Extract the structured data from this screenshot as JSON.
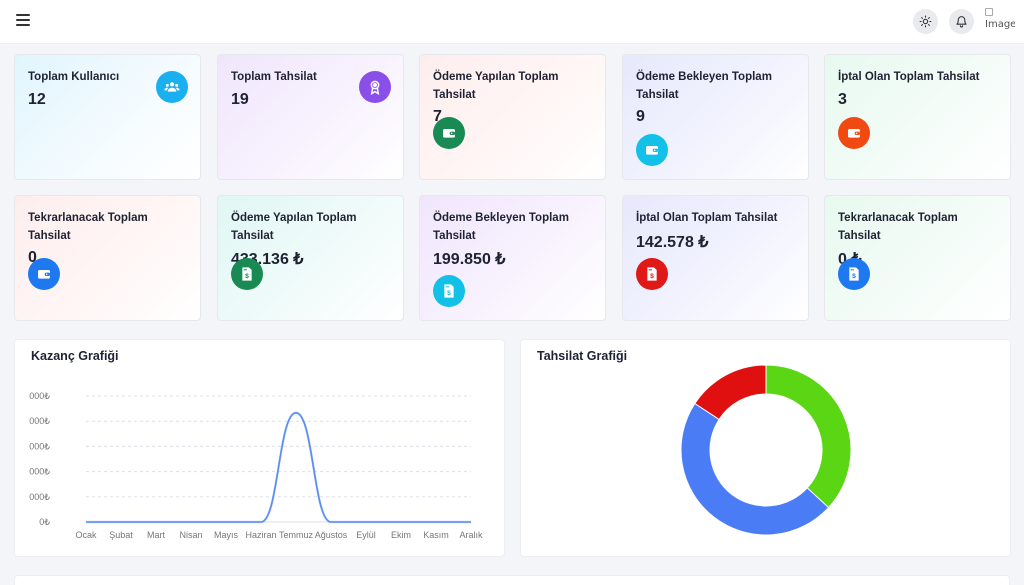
{
  "topbar": {
    "avatar_alt": "Image",
    "icons": {
      "menu": "hamburger-icon",
      "theme": "sun-icon",
      "notifications": "bell-icon"
    }
  },
  "cards": [
    {
      "title": "Toplam Kullanıcı",
      "value": "12",
      "icon": "users-icon",
      "color": "#1ab0f0"
    },
    {
      "title": "Toplam Tahsilat",
      "value": "19",
      "icon": "award-icon",
      "color": "#8a4fe8"
    },
    {
      "title": "Ödeme Yapılan Toplam Tahsilat",
      "value": "7",
      "icon": "wallet-icon",
      "color": "#1a8a55"
    },
    {
      "title": "Ödeme Bekleyen Toplam Tahsilat",
      "value": "9",
      "icon": "wallet-icon",
      "color": "#12c0e8"
    },
    {
      "title": "İptal Olan Toplam Tahsilat",
      "value": "3",
      "icon": "wallet-icon",
      "color": "#f04a12"
    },
    {
      "title": "Tekrarlanacak Toplam Tahsilat",
      "value": "0",
      "icon": "wallet-icon",
      "color": "#1e78f0"
    },
    {
      "title": "Ödeme Yapılan Toplam Tahsilat",
      "value": "433.136 ₺",
      "icon": "invoice-icon",
      "color": "#1a8a55"
    },
    {
      "title": "Ödeme Bekleyen Toplam Tahsilat",
      "value": "199.850 ₺",
      "icon": "invoice-icon",
      "color": "#12c0e8"
    },
    {
      "title": "İptal Olan Toplam Tahsilat",
      "value": "142.578 ₺",
      "icon": "invoice-icon",
      "color": "#e01818"
    },
    {
      "title": "Tekrarlanacak Toplam Tahsilat",
      "value": "0 ₺",
      "icon": "invoice-icon",
      "color": "#1e78f0"
    }
  ],
  "earnings_panel": {
    "title": "Kazanç Grafiği"
  },
  "collection_panel": {
    "title": "Tahsilat Grafiği"
  },
  "chart_data": [
    {
      "type": "line",
      "title": "Kazanç Grafiği",
      "categories": [
        "Ocak",
        "Şubat",
        "Mart",
        "Nisan",
        "Mayıs",
        "Haziran",
        "Temmuz",
        "Ağustos",
        "Eylül",
        "Ekim",
        "Kasım",
        "Aralık"
      ],
      "y_tick_labels": [
        "0₺",
        "000₺",
        "000₺",
        "000₺",
        "000₺",
        "000₺"
      ],
      "series": [
        {
          "values": [
            0,
            0,
            0,
            0,
            0,
            0,
            433136,
            0,
            0,
            0,
            0,
            0
          ],
          "color": "#5b8def"
        }
      ],
      "ylim": [
        0,
        500000
      ],
      "grid": true
    },
    {
      "type": "pie",
      "title": "Tahsilat Grafiği",
      "style": "donut",
      "slices": [
        {
          "value": 7,
          "color": "#5ad615"
        },
        {
          "value": 9,
          "color": "#4a7cf6"
        },
        {
          "value": 3,
          "color": "#e01010"
        }
      ]
    }
  ]
}
